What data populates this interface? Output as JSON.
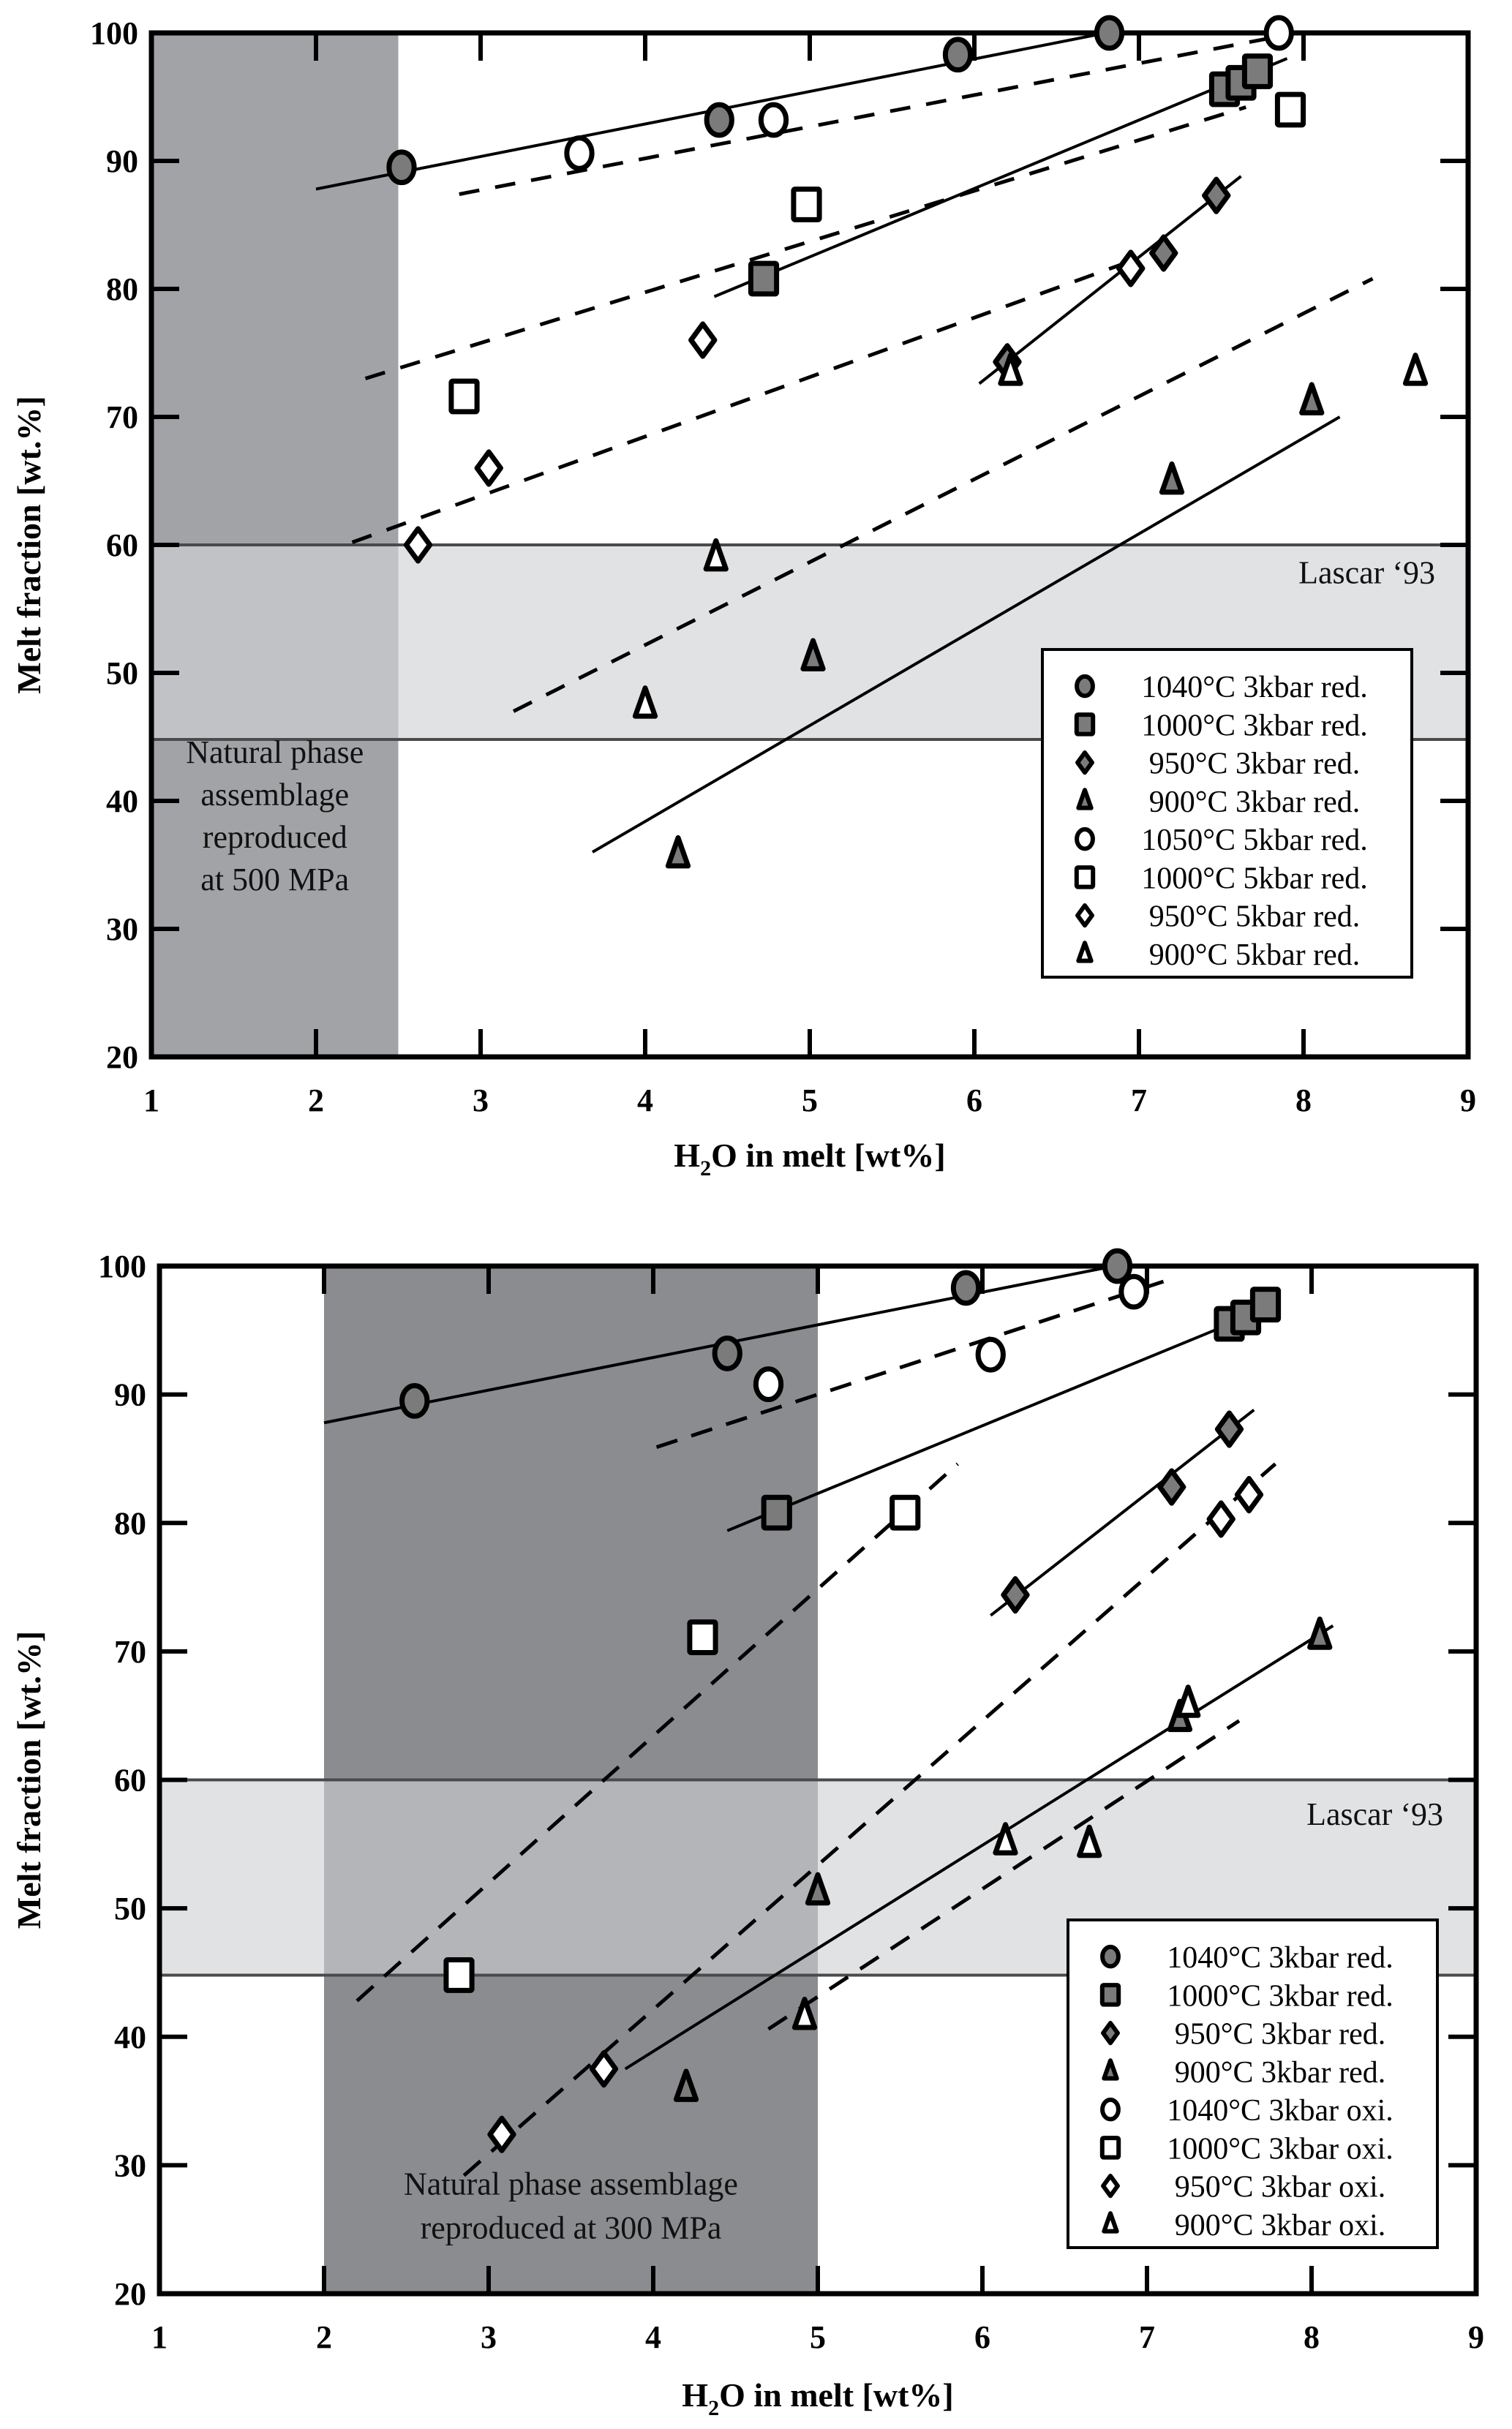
{
  "chart_data": [
    {
      "type": "scatter",
      "panel": "top",
      "xlabel_main": "H",
      "xlabel_sub": "2",
      "xlabel_rest": "O in melt [wt%]",
      "ylabel": "Melt fraction [wt.%]",
      "xlim": [
        1,
        9
      ],
      "ylim": [
        20,
        100
      ],
      "xticks": [
        "1",
        "2",
        "3",
        "4",
        "5",
        "6",
        "7",
        "8",
        "9"
      ],
      "yticks": [
        "20",
        "30",
        "40",
        "50",
        "60",
        "70",
        "80",
        "90",
        "100"
      ],
      "grid": false,
      "legend_position": "lower-right",
      "shaded_regions": [
        {
          "name": "natural-phase-region",
          "x": [
            1,
            2.5
          ],
          "y": [
            20,
            100
          ],
          "color": "#a2a3a6"
        },
        {
          "name": "lascar-band",
          "x": [
            1,
            9
          ],
          "y": [
            44.8,
            60
          ],
          "color": "#e1e2e4"
        }
      ],
      "annotations": [
        {
          "name": "natural-phase-annotation",
          "lines": [
            "Natural phase",
            "assemblage",
            "reproduced",
            "at 500 MPa"
          ],
          "x": 1.75,
          "y": 38
        },
        {
          "name": "lascar-label",
          "lines": [
            "Lascar ‘93"
          ],
          "x": 8.8,
          "y": 57
        }
      ],
      "series": [
        {
          "name": "1040°C 3kbar red.",
          "marker": "circle",
          "fill": "#7b7b7b",
          "points": [
            [
              2.52,
              89.5
            ],
            [
              4.45,
              93.2
            ],
            [
              5.9,
              98.3
            ],
            [
              6.82,
              100
            ]
          ]
        },
        {
          "name": "1000°C 3kbar red.",
          "marker": "square",
          "fill": "#7b7b7b",
          "points": [
            [
              4.72,
              80.8
            ],
            [
              7.52,
              95.6
            ],
            [
              7.62,
              96.1
            ],
            [
              7.72,
              97.0
            ]
          ]
        },
        {
          "name": "950°C 3kbar red.",
          "marker": "diamond",
          "fill": "#7b7b7b",
          "points": [
            [
              6.2,
              74.3
            ],
            [
              7.15,
              82.8
            ],
            [
              7.47,
              87.3
            ]
          ]
        },
        {
          "name": "900°C 3kbar red.",
          "marker": "triangle",
          "fill": "#7b7b7b",
          "points": [
            [
              4.2,
              35.8
            ],
            [
              5.02,
              51.2
            ],
            [
              7.2,
              65.0
            ],
            [
              8.05,
              71.2
            ]
          ]
        },
        {
          "name": "1050°C 5kbar red.",
          "marker": "circle",
          "fill": "#ffffff",
          "points": [
            [
              3.6,
              90.6
            ],
            [
              4.78,
              93.2
            ],
            [
              7.85,
              100
            ]
          ]
        },
        {
          "name": "1000°C 5kbar red.",
          "marker": "square",
          "fill": "#ffffff",
          "points": [
            [
              2.9,
              71.6
            ],
            [
              4.98,
              86.6
            ],
            [
              7.92,
              94.0
            ]
          ]
        },
        {
          "name": "950°C 5kbar red.",
          "marker": "diamond",
          "fill": "#ffffff",
          "points": [
            [
              2.62,
              60.0
            ],
            [
              3.05,
              66.0
            ],
            [
              4.35,
              76.0
            ],
            [
              6.95,
              81.6
            ]
          ]
        },
        {
          "name": "900°C 5kbar red.",
          "marker": "triangle",
          "fill": "#ffffff",
          "points": [
            [
              4.0,
              47.5
            ],
            [
              4.43,
              59.0
            ],
            [
              6.22,
              73.5
            ],
            [
              8.68,
              73.5
            ]
          ]
        }
      ],
      "fit_lines": [
        {
          "name": "fit-1040-red",
          "style": "solid",
          "from": [
            2.0,
            87.8
          ],
          "to": [
            6.8,
            100
          ]
        },
        {
          "name": "fit-1050-5kbar",
          "style": "dashed",
          "from": [
            2.87,
            87.4
          ],
          "to": [
            7.8,
            99.6
          ]
        },
        {
          "name": "fit-1000-red",
          "style": "solid",
          "from": [
            4.42,
            79.4
          ],
          "to": [
            7.9,
            98.0
          ]
        },
        {
          "name": "fit-1000-5kbar",
          "style": "dashed",
          "from": [
            2.3,
            73.0
          ],
          "to": [
            7.65,
            94.2
          ]
        },
        {
          "name": "fit-950-red",
          "style": "solid",
          "from": [
            6.03,
            72.6
          ],
          "to": [
            7.62,
            88.8
          ]
        },
        {
          "name": "fit-950-5kbar",
          "style": "dashed",
          "from": [
            2.22,
            60.2
          ],
          "to": [
            7.0,
            82.4
          ]
        },
        {
          "name": "fit-900-5kbar",
          "style": "dashed",
          "from": [
            3.2,
            47.0
          ],
          "to": [
            8.42,
            80.8
          ]
        },
        {
          "name": "fit-900-red",
          "style": "solid",
          "from": [
            3.68,
            36.0
          ],
          "to": [
            8.22,
            70.0
          ]
        }
      ]
    },
    {
      "type": "scatter",
      "panel": "bottom",
      "xlabel_main": "H",
      "xlabel_sub": "2",
      "xlabel_rest": "O in melt [wt%]",
      "ylabel": "Melt fraction [wt.%]",
      "xlim": [
        1,
        9
      ],
      "ylim": [
        20,
        100
      ],
      "xticks": [
        "1",
        "2",
        "3",
        "4",
        "5",
        "6",
        "7",
        "8",
        "9"
      ],
      "yticks": [
        "20",
        "30",
        "40",
        "50",
        "60",
        "70",
        "80",
        "90",
        "100"
      ],
      "grid": false,
      "legend_position": "lower-right",
      "shaded_regions": [
        {
          "name": "natural-phase-region",
          "x": [
            2,
            5
          ],
          "y": [
            20,
            100
          ],
          "color": "#8b8c8f"
        },
        {
          "name": "lascar-band",
          "x": [
            1,
            9
          ],
          "y": [
            44.8,
            60
          ],
          "color": "#e1e2e4"
        }
      ],
      "annotations": [
        {
          "name": "natural-phase-annotation",
          "lines": [
            "Natural phase assemblage",
            "reproduced at 300 MPa"
          ],
          "x": 3.5,
          "y": 26
        },
        {
          "name": "lascar-label",
          "lines": [
            "Lascar ‘93"
          ],
          "x": 8.8,
          "y": 56.5
        }
      ],
      "series": [
        {
          "name": "1040°C 3kbar red.",
          "marker": "circle",
          "fill": "#7b7b7b",
          "points": [
            [
              2.55,
              89.5
            ],
            [
              4.45,
              93.2
            ],
            [
              5.9,
              98.3
            ],
            [
              6.82,
              100
            ]
          ]
        },
        {
          "name": "1000°C 3kbar red.",
          "marker": "square",
          "fill": "#7b7b7b",
          "points": [
            [
              4.75,
              80.8
            ],
            [
              7.5,
              95.5
            ],
            [
              7.6,
              96.0
            ],
            [
              7.72,
              97.0
            ]
          ]
        },
        {
          "name": "950°C 3kbar red.",
          "marker": "diamond",
          "fill": "#7b7b7b",
          "points": [
            [
              6.2,
              74.4
            ],
            [
              7.15,
              82.8
            ],
            [
              7.5,
              87.3
            ]
          ]
        },
        {
          "name": "900°C 3kbar red.",
          "marker": "triangle",
          "fill": "#7b7b7b",
          "points": [
            [
              4.2,
              36.0
            ],
            [
              5.0,
              51.3
            ],
            [
              7.2,
              64.8
            ],
            [
              8.05,
              71.2
            ]
          ]
        },
        {
          "name": "1040°C 3kbar oxi.",
          "marker": "circle",
          "fill": "#ffffff",
          "points": [
            [
              4.7,
              90.8
            ],
            [
              6.05,
              93.1
            ],
            [
              6.92,
              98.0
            ]
          ]
        },
        {
          "name": "1000°C 3kbar oxi.",
          "marker": "square",
          "fill": "#ffffff",
          "points": [
            [
              2.82,
              44.8
            ],
            [
              4.3,
              71.1
            ],
            [
              5.53,
              80.8
            ]
          ]
        },
        {
          "name": "950°C 3kbar oxi.",
          "marker": "diamond",
          "fill": "#ffffff",
          "points": [
            [
              3.08,
              32.4
            ],
            [
              3.7,
              37.5
            ],
            [
              7.45,
              80.3
            ],
            [
              7.62,
              82.2
            ]
          ]
        },
        {
          "name": "900°C 3kbar oxi.",
          "marker": "triangle",
          "fill": "#ffffff",
          "points": [
            [
              4.92,
              41.6
            ],
            [
              6.14,
              55.2
            ],
            [
              6.65,
              55.0
            ],
            [
              7.25,
              65.9
            ]
          ]
        }
      ],
      "fit_lines": [
        {
          "name": "fit-1040-red",
          "style": "solid",
          "from": [
            2.0,
            87.8
          ],
          "to": [
            6.8,
            100
          ]
        },
        {
          "name": "fit-1040-oxi",
          "style": "dashed",
          "from": [
            4.02,
            85.9
          ],
          "to": [
            7.1,
            98.8
          ]
        },
        {
          "name": "fit-1000-red",
          "style": "solid",
          "from": [
            4.45,
            79.4
          ],
          "to": [
            7.6,
            96.0
          ]
        },
        {
          "name": "fit-1000-oxi",
          "style": "dashed",
          "from": [
            2.2,
            42.8
          ],
          "to": [
            5.85,
            84.6
          ]
        },
        {
          "name": "fit-950-red",
          "style": "solid",
          "from": [
            6.05,
            72.8
          ],
          "to": [
            7.65,
            88.8
          ]
        },
        {
          "name": "fit-950-oxi",
          "style": "dashed",
          "from": [
            2.85,
            29.2
          ],
          "to": [
            7.78,
            84.6
          ]
        },
        {
          "name": "fit-900-red",
          "style": "solid",
          "from": [
            3.83,
            37.5
          ],
          "to": [
            8.13,
            72.0
          ]
        },
        {
          "name": "fit-900-oxi",
          "style": "dashed",
          "from": [
            4.7,
            40.6
          ],
          "to": [
            7.56,
            64.6
          ]
        }
      ]
    }
  ]
}
